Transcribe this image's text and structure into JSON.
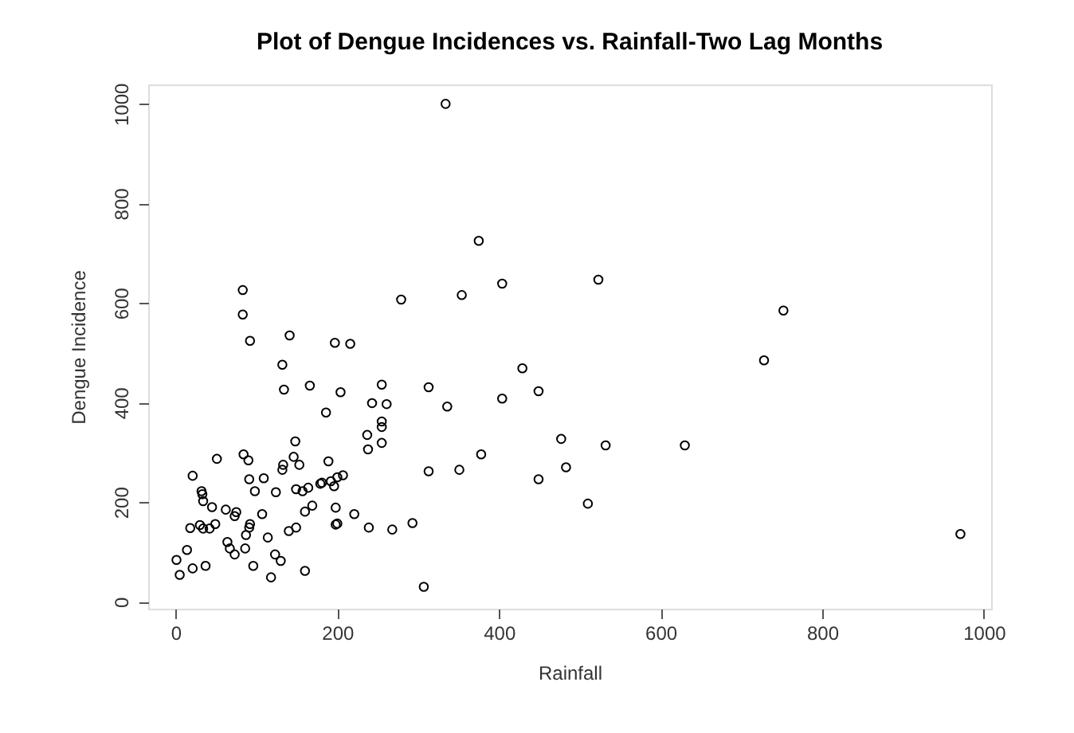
{
  "chart_data": {
    "type": "scatter",
    "title": "Plot of Dengue Incidences vs. Rainfall-Two Lag Months",
    "xlabel": "Rainfall",
    "ylabel": "Dengue Incidence",
    "marker": "circle",
    "grid": false,
    "xlim": [
      -34,
      1009
    ],
    "ylim": [
      -14,
      1039
    ],
    "xticks": [
      0,
      200,
      400,
      600,
      800,
      1000
    ],
    "yticks": [
      0,
      200,
      400,
      600,
      800,
      1000
    ],
    "series": [
      {
        "color": "#000000",
        "x": [
          334,
          375,
          83,
          83,
          92,
          141,
          197,
          216,
          132,
          279,
          354,
          404,
          523,
          429,
          752,
          728,
          532,
          630,
          510,
          971,
          134,
          166,
          204,
          255,
          313,
          243,
          261,
          336,
          404,
          449,
          186,
          237,
          255,
          255,
          238,
          255,
          148,
          477,
          378,
          84,
          90,
          51,
          133,
          132,
          146,
          153,
          189,
          313,
          351,
          483,
          449,
          21,
          91,
          109,
          98,
          124,
          149,
          157,
          164,
          179,
          181,
          192,
          196,
          200,
          207,
          32,
          33,
          34,
          45,
          62,
          75,
          73,
          107,
          169,
          160,
          198,
          221,
          18,
          30,
          34,
          42,
          49,
          92,
          91,
          87,
          149,
          140,
          198,
          200,
          239,
          268,
          293,
          64,
          67,
          73,
          86,
          114,
          123,
          130,
          14,
          1,
          21,
          37,
          5,
          96,
          118,
          160,
          307
        ],
        "values": [
          1000,
          725,
          626,
          577,
          524,
          535,
          520,
          518,
          476,
          607,
          616,
          639,
          647,
          469,
          585,
          485,
          314,
          314,
          197,
          136,
          426,
          434,
          421,
          436,
          431,
          399,
          397,
          392,
          408,
          423,
          380,
          335,
          362,
          351,
          306,
          319,
          322,
          327,
          296,
          296,
          284,
          287,
          275,
          265,
          291,
          275,
          282,
          262,
          265,
          270,
          246,
          253,
          246,
          248,
          222,
          220,
          226,
          222,
          229,
          237,
          239,
          242,
          232,
          250,
          254,
          222,
          216,
          202,
          190,
          185,
          180,
          172,
          176,
          193,
          181,
          189,
          176,
          148,
          154,
          147,
          147,
          156,
          156,
          149,
          134,
          149,
          142,
          155,
          157,
          149,
          145,
          158,
          120,
          107,
          95,
          107,
          129,
          95,
          82,
          104,
          84,
          67,
          72,
          54,
          72,
          49,
          62,
          30
        ]
      }
    ]
  }
}
